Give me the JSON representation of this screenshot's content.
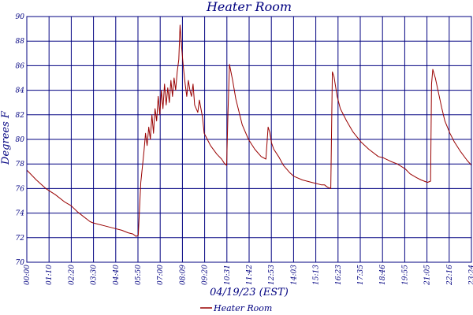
{
  "chart_data": {
    "type": "line",
    "title": "Heater Room",
    "xlabel": "04/19/23 (EST)",
    "ylabel": "Degrees F",
    "ylim": [
      70,
      90
    ],
    "yticks": [
      70,
      72,
      74,
      76,
      78,
      80,
      82,
      84,
      86,
      88,
      90
    ],
    "xlim": [
      "00:00",
      "23:24"
    ],
    "xticks": [
      "00:00",
      "01:10",
      "02:20",
      "03:30",
      "04:40",
      "05:50",
      "07:00",
      "08:09",
      "09:20",
      "10:31",
      "11:42",
      "12:53",
      "14:03",
      "15:13",
      "16:23",
      "17:35",
      "18:46",
      "19:55",
      "21:05",
      "22:16",
      "23:24"
    ],
    "grid": true,
    "legend": "bottom-center",
    "colors": {
      "series": "#990000",
      "grid": "#000080",
      "text": "#000080"
    },
    "series": [
      {
        "name": "Heater Room",
        "x": [
          "00:00",
          "00:30",
          "01:00",
          "01:30",
          "02:00",
          "02:20",
          "02:40",
          "03:00",
          "03:10",
          "03:20",
          "03:30",
          "04:00",
          "04:30",
          "05:00",
          "05:20",
          "05:35",
          "05:45",
          "05:52",
          "06:00",
          "06:10",
          "06:15",
          "06:20",
          "06:25",
          "06:30",
          "06:35",
          "06:40",
          "06:45",
          "06:50",
          "06:55",
          "07:00",
          "07:05",
          "07:10",
          "07:15",
          "07:20",
          "07:25",
          "07:30",
          "07:35",
          "07:40",
          "07:45",
          "07:50",
          "07:55",
          "08:00",
          "08:04",
          "08:09",
          "08:14",
          "08:20",
          "08:25",
          "08:30",
          "08:35",
          "08:40",
          "08:45",
          "08:50",
          "09:00",
          "09:05",
          "09:10",
          "09:15",
          "09:20",
          "09:30",
          "09:40",
          "10:00",
          "10:15",
          "10:25",
          "10:31",
          "10:35",
          "10:40",
          "10:50",
          "11:00",
          "11:20",
          "11:40",
          "12:00",
          "12:20",
          "12:35",
          "12:42",
          "12:47",
          "12:53",
          "13:00",
          "13:15",
          "13:30",
          "13:50",
          "14:03",
          "14:30",
          "15:00",
          "15:30",
          "15:40",
          "15:45",
          "15:50",
          "16:00",
          "16:05",
          "16:10",
          "16:20",
          "16:30",
          "16:50",
          "17:10",
          "17:35",
          "18:00",
          "18:30",
          "18:46",
          "19:10",
          "19:30",
          "19:55",
          "20:10",
          "20:30",
          "20:45",
          "21:05",
          "21:15",
          "21:18",
          "21:22",
          "21:30",
          "21:40",
          "21:50",
          "22:00",
          "22:16",
          "22:30",
          "22:50",
          "23:10",
          "23:24"
        ],
        "values": [
          77.5,
          76.7,
          76.0,
          75.5,
          74.9,
          74.6,
          74.1,
          73.7,
          73.5,
          73.3,
          73.2,
          73.0,
          72.8,
          72.6,
          72.4,
          72.3,
          72.1,
          72.2,
          76.5,
          79.0,
          80.5,
          79.5,
          81.0,
          80.0,
          82.0,
          80.5,
          82.5,
          81.5,
          83.5,
          82.0,
          84.0,
          82.5,
          84.5,
          82.8,
          84.2,
          83.0,
          84.8,
          83.5,
          85.0,
          84.0,
          85.5,
          86.5,
          89.3,
          87.5,
          86.0,
          84.5,
          83.5,
          84.8,
          84.0,
          83.5,
          84.5,
          82.8,
          82.2,
          83.2,
          82.5,
          81.8,
          80.5,
          80.0,
          79.5,
          78.8,
          78.4,
          78.0,
          77.9,
          82.0,
          86.1,
          84.8,
          83.3,
          81.2,
          80.0,
          79.2,
          78.6,
          78.4,
          81.0,
          80.6,
          79.7,
          79.2,
          78.6,
          77.9,
          77.3,
          77.0,
          76.7,
          76.5,
          76.3,
          76.3,
          76.2,
          76.1,
          76.0,
          85.5,
          85.1,
          83.5,
          82.5,
          81.5,
          80.6,
          79.8,
          79.2,
          78.6,
          78.5,
          78.2,
          78.0,
          77.6,
          77.2,
          76.9,
          76.7,
          76.5,
          76.6,
          84.5,
          85.7,
          85.0,
          83.8,
          82.6,
          81.5,
          80.5,
          79.8,
          79.0,
          78.3,
          77.9
        ]
      }
    ]
  }
}
